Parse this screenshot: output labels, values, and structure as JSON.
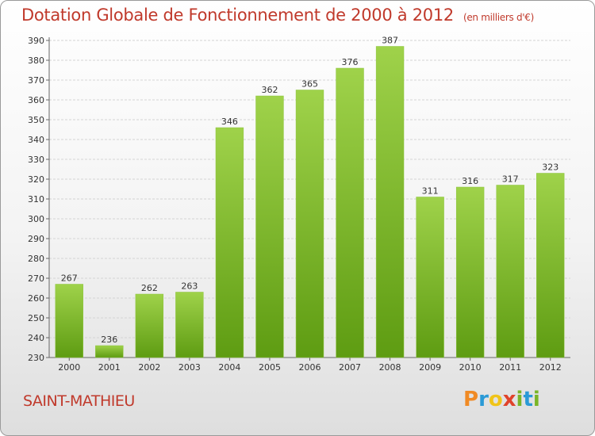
{
  "header": {
    "title": "Dotation Globale de Fonctionnement de 2000 à 2012",
    "unit_note": "(en milliers d'€)"
  },
  "footer": {
    "commune": "SAINT-MATHIEU",
    "brand_letters": [
      "P",
      "r",
      "o",
      "x",
      "i",
      "t",
      "i"
    ],
    "brand_colors": [
      "#f08a24",
      "#2a9ad6",
      "#f0c419",
      "#e0432b",
      "#7ab527",
      "#2a9ad6",
      "#7ab527"
    ]
  },
  "chart_data": {
    "type": "bar",
    "categories": [
      "2000",
      "2001",
      "2002",
      "2003",
      "2004",
      "2005",
      "2006",
      "2007",
      "2008",
      "2009",
      "2010",
      "2011",
      "2012"
    ],
    "values": [
      267,
      236,
      262,
      263,
      346,
      362,
      365,
      376,
      387,
      311,
      316,
      317,
      323
    ],
    "title": "Dotation Globale de Fonctionnement de 2000 à 2012",
    "xlabel": "",
    "ylabel": "",
    "ylim": [
      230,
      390
    ],
    "yticks": [
      230,
      240,
      250,
      260,
      270,
      280,
      290,
      300,
      310,
      320,
      330,
      340,
      350,
      360,
      370,
      380,
      390
    ],
    "grid": true,
    "bar_color": "#7ab527"
  }
}
